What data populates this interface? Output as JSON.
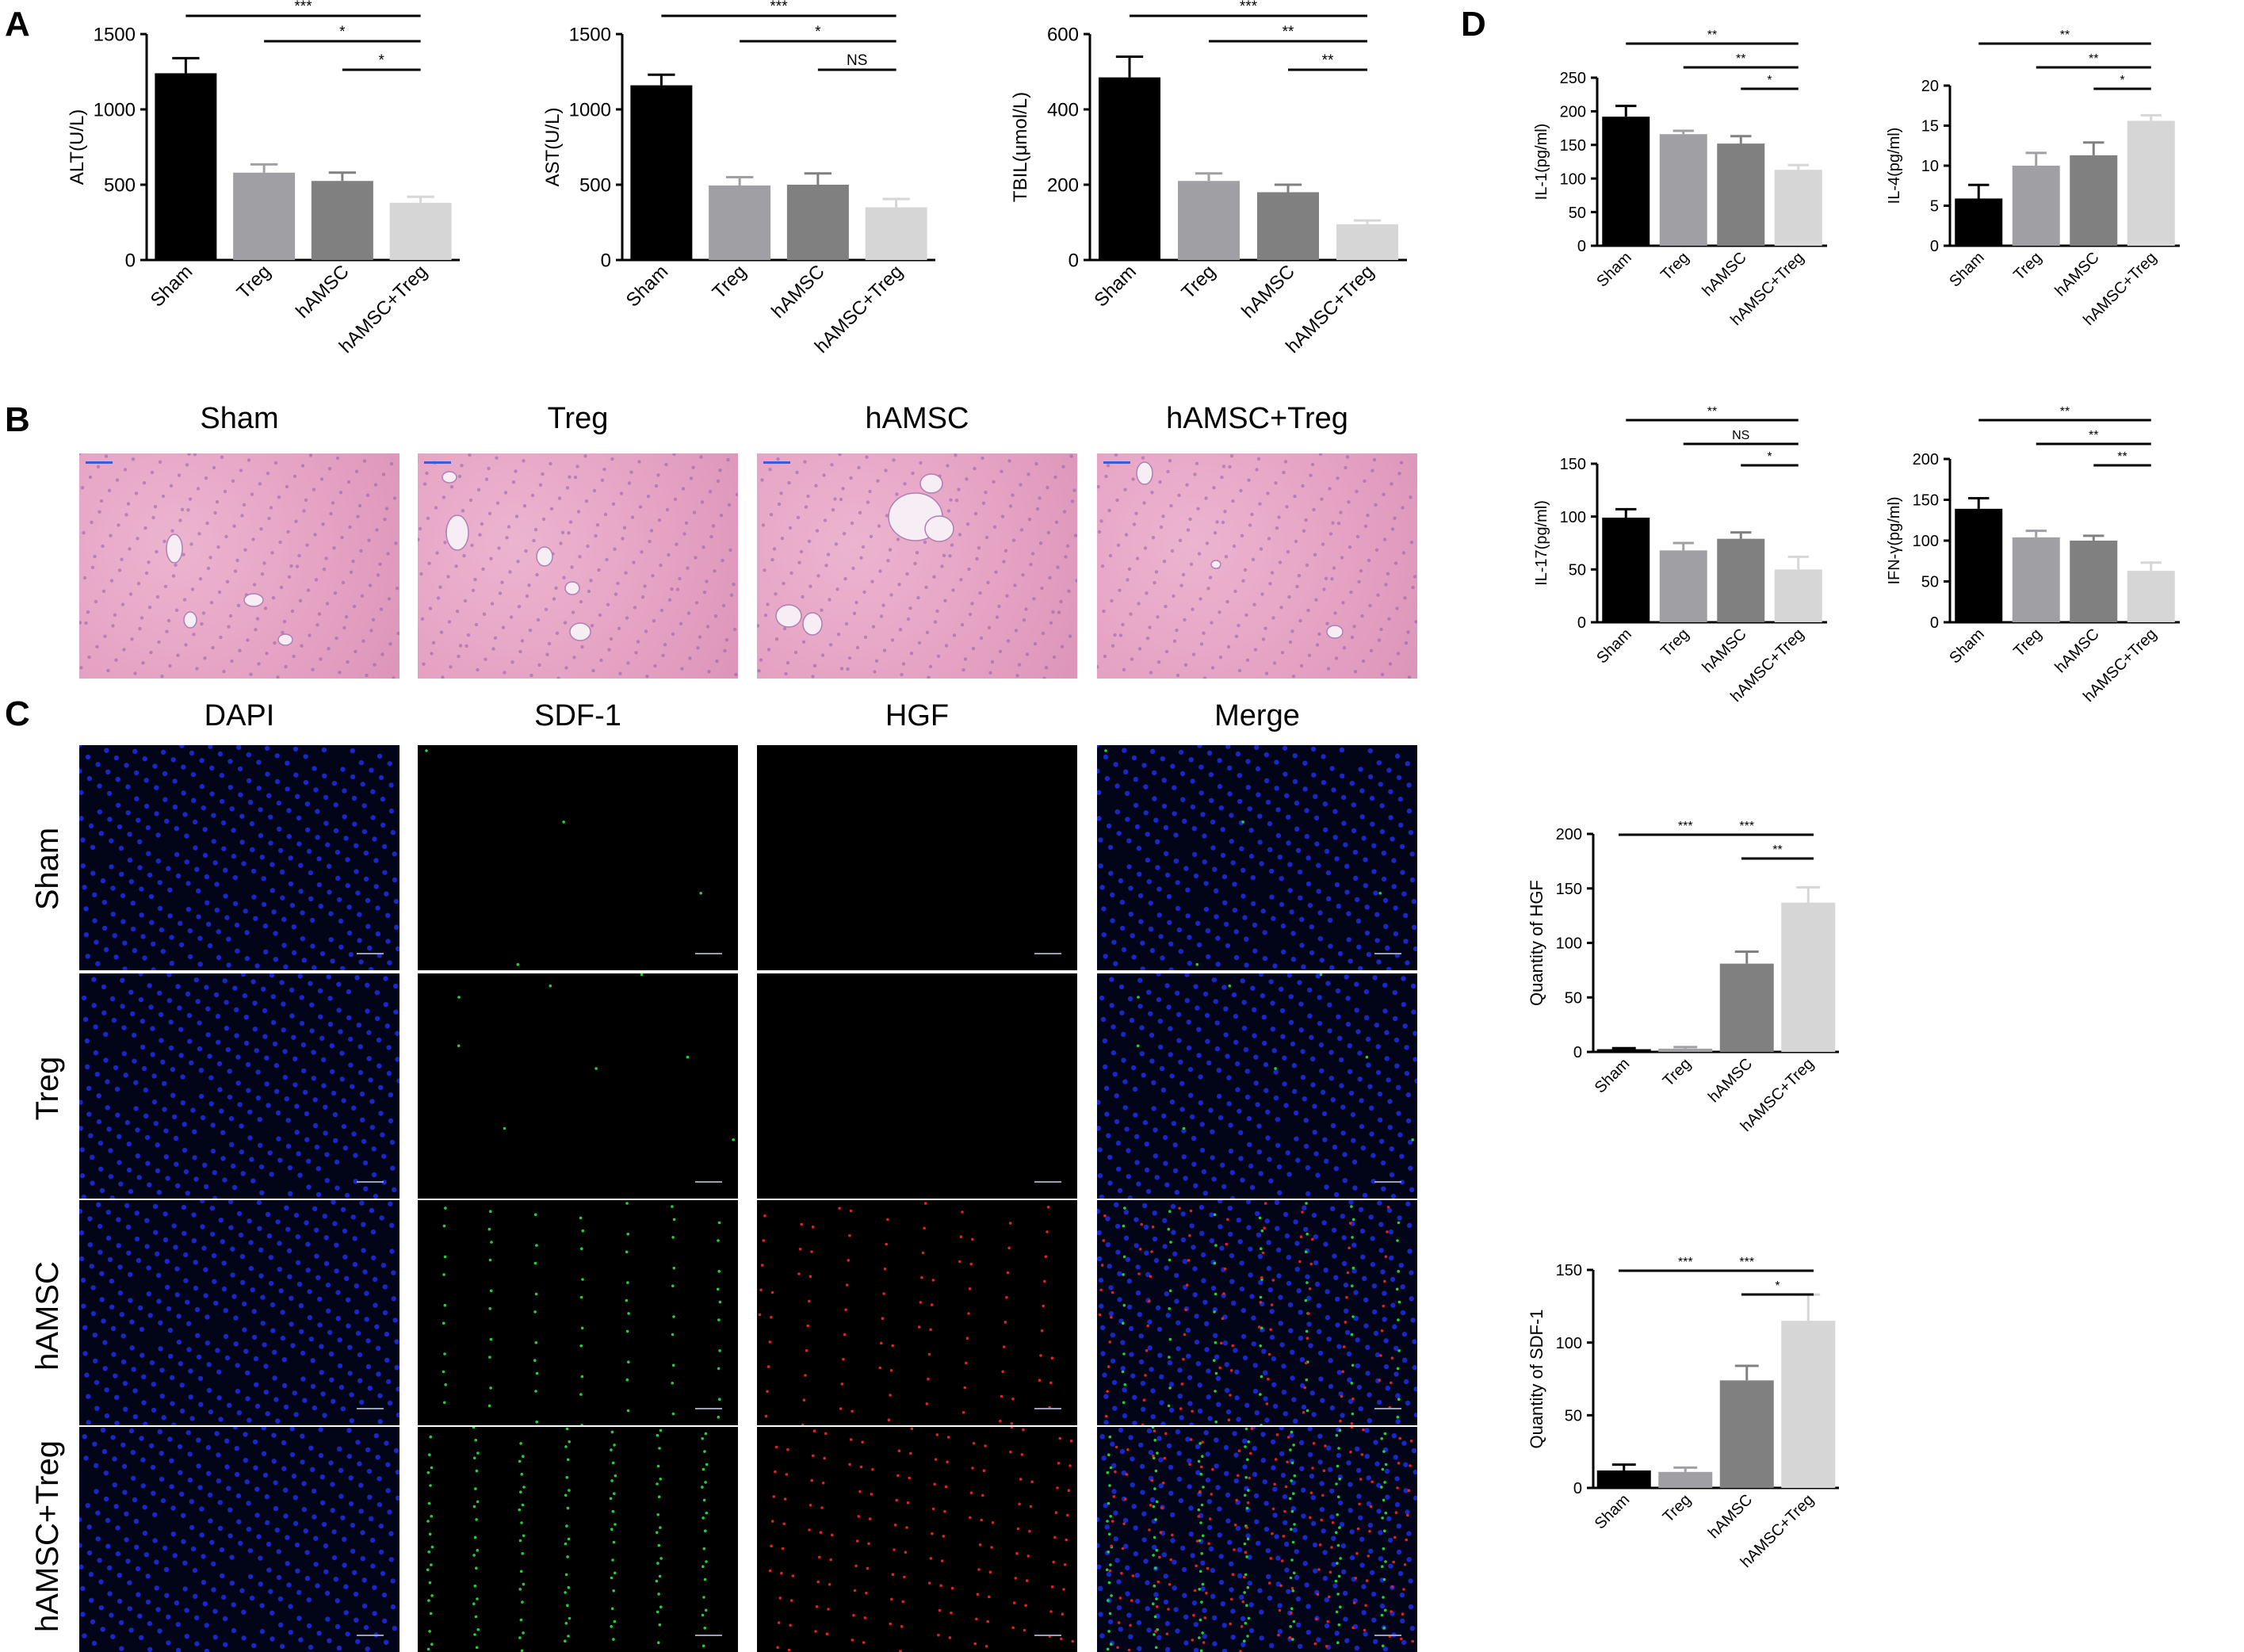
{
  "panels": {
    "a": "A",
    "b": "B",
    "c": "C",
    "d": "D"
  },
  "colors": {
    "sham": "#000000",
    "treg": "#a0a0a4",
    "hamsc": "#808080",
    "combo": "#d6d6d6"
  },
  "he": {
    "titles": [
      "Sham",
      "Treg",
      "hAMSC",
      "hAMSC+Treg"
    ],
    "bg": "#e6a3c4",
    "vessel": "#f6eef4",
    "scale_color": "#3b5bd8"
  },
  "fluor": {
    "columns": [
      "DAPI",
      "SDF-1",
      "HGF",
      "Merge"
    ],
    "rows": [
      "Sham",
      "Treg",
      "hAMSC",
      "hAMSC+Treg"
    ],
    "nuclei": "#1e2ee6",
    "green": "#22d13a",
    "red": "#e02222"
  },
  "chart_data": [
    {
      "id": "alt",
      "type": "bar",
      "categories": [
        "Sham",
        "Treg",
        "hAMSC",
        "hAMSC+Treg"
      ],
      "values": [
        1240,
        580,
        525,
        380
      ],
      "errors": [
        100,
        55,
        55,
        40
      ],
      "ylabel": "ALT(U/L)",
      "ylim": [
        0,
        1500
      ],
      "yticks": [
        0,
        500,
        1000,
        1500
      ],
      "sig": [
        {
          "from": 0,
          "to": 3,
          "label": "***"
        },
        {
          "from": 1,
          "to": 3,
          "label": "*"
        },
        {
          "from": 2,
          "to": 3,
          "label": "*"
        }
      ]
    },
    {
      "id": "ast",
      "type": "bar",
      "categories": [
        "Sham",
        "Treg",
        "hAMSC",
        "hAMSC+Treg"
      ],
      "values": [
        1160,
        495,
        500,
        350
      ],
      "errors": [
        70,
        55,
        75,
        55
      ],
      "ylabel": "AST(U/L)",
      "ylim": [
        0,
        1500
      ],
      "yticks": [
        0,
        500,
        1000,
        1500
      ],
      "sig": [
        {
          "from": 0,
          "to": 3,
          "label": "***"
        },
        {
          "from": 1,
          "to": 3,
          "label": "*"
        },
        {
          "from": 2,
          "to": 3,
          "label": "NS"
        }
      ]
    },
    {
      "id": "tbil",
      "type": "bar",
      "categories": [
        "Sham",
        "Treg",
        "hAMSC",
        "hAMSC+Treg"
      ],
      "values": [
        485,
        210,
        180,
        95
      ],
      "errors": [
        55,
        20,
        20,
        10
      ],
      "ylabel": "TBIL(μmol/L)",
      "ylim": [
        0,
        600
      ],
      "yticks": [
        0,
        200,
        400,
        600
      ],
      "sig": [
        {
          "from": 0,
          "to": 3,
          "label": "***"
        },
        {
          "from": 1,
          "to": 3,
          "label": "**"
        },
        {
          "from": 2,
          "to": 3,
          "label": "**"
        }
      ]
    },
    {
      "id": "il1",
      "type": "bar",
      "categories": [
        "Sham",
        "Treg",
        "hAMSC",
        "hAMSC+Treg"
      ],
      "values": [
        192,
        166,
        152,
        113
      ],
      "errors": [
        16,
        5,
        11,
        7
      ],
      "ylabel": "IL-1(pg/ml)",
      "ylim": [
        0,
        250
      ],
      "yticks": [
        0,
        50,
        100,
        150,
        200,
        250
      ],
      "sig": [
        {
          "from": 0,
          "to": 3,
          "label": "**"
        },
        {
          "from": 1,
          "to": 3,
          "label": "**"
        },
        {
          "from": 2,
          "to": 3,
          "label": "*"
        }
      ]
    },
    {
      "id": "il4",
      "type": "bar",
      "categories": [
        "Sham",
        "Treg",
        "hAMSC",
        "hAMSC+Treg"
      ],
      "values": [
        5.9,
        10.0,
        11.3,
        15.6
      ],
      "errors": [
        1.7,
        1.6,
        1.6,
        0.7
      ],
      "ylabel": "IL-4(pg/ml)",
      "ylim": [
        0,
        20
      ],
      "yticks": [
        0,
        5,
        10,
        15,
        20
      ],
      "sig": [
        {
          "from": 0,
          "to": 3,
          "label": "**"
        },
        {
          "from": 1,
          "to": 3,
          "label": "**"
        },
        {
          "from": 2,
          "to": 3,
          "label": "*"
        }
      ]
    },
    {
      "id": "il17",
      "type": "bar",
      "categories": [
        "Sham",
        "Treg",
        "hAMSC",
        "hAMSC+Treg"
      ],
      "values": [
        99,
        68,
        79,
        50
      ],
      "errors": [
        8,
        7,
        6,
        12
      ],
      "ylabel": "IL-17(pg/ml)",
      "ylim": [
        0,
        150
      ],
      "yticks": [
        0,
        50,
        100,
        150
      ],
      "sig": [
        {
          "from": 0,
          "to": 3,
          "label": "**"
        },
        {
          "from": 1,
          "to": 3,
          "label": "NS"
        },
        {
          "from": 2,
          "to": 3,
          "label": "*"
        }
      ]
    },
    {
      "id": "ifng",
      "type": "bar",
      "categories": [
        "Sham",
        "Treg",
        "hAMSC",
        "hAMSC+Treg"
      ],
      "values": [
        139,
        104,
        100,
        63
      ],
      "errors": [
        13,
        8,
        6,
        10
      ],
      "ylabel": "IFN-γ(pg/ml)",
      "ylim": [
        0,
        200
      ],
      "yticks": [
        0,
        50,
        100,
        150,
        200
      ],
      "sig": [
        {
          "from": 0,
          "to": 3,
          "label": "**"
        },
        {
          "from": 1,
          "to": 3,
          "label": "**"
        },
        {
          "from": 2,
          "to": 3,
          "label": "**"
        }
      ]
    },
    {
      "id": "hgf",
      "type": "bar",
      "categories": [
        "Sham",
        "Treg",
        "hAMSC",
        "hAMSC+Treg"
      ],
      "values": [
        2.5,
        3,
        81,
        137
      ],
      "errors": [
        1,
        1.5,
        11,
        14
      ],
      "ylabel": "Quantity of HGF",
      "ylim": [
        0,
        200
      ],
      "yticks": [
        0,
        50,
        100,
        150,
        200
      ],
      "sig": [
        {
          "from": 1,
          "to": 3,
          "label": "***"
        },
        {
          "from": 0,
          "to": 2,
          "label": "***"
        },
        {
          "from": 2,
          "to": 3,
          "label": "**"
        }
      ]
    },
    {
      "id": "sdf1",
      "type": "bar",
      "categories": [
        "Sham",
        "Treg",
        "hAMSC",
        "hAMSC+Treg"
      ],
      "values": [
        12,
        11,
        74,
        115
      ],
      "errors": [
        4,
        3,
        10,
        18
      ],
      "ylabel": "Quantity of SDF-1",
      "ylim": [
        0,
        150
      ],
      "yticks": [
        0,
        50,
        100,
        150
      ],
      "sig": [
        {
          "from": 1,
          "to": 3,
          "label": "***"
        },
        {
          "from": 0,
          "to": 2,
          "label": "***"
        },
        {
          "from": 2,
          "to": 3,
          "label": "*"
        }
      ]
    }
  ]
}
